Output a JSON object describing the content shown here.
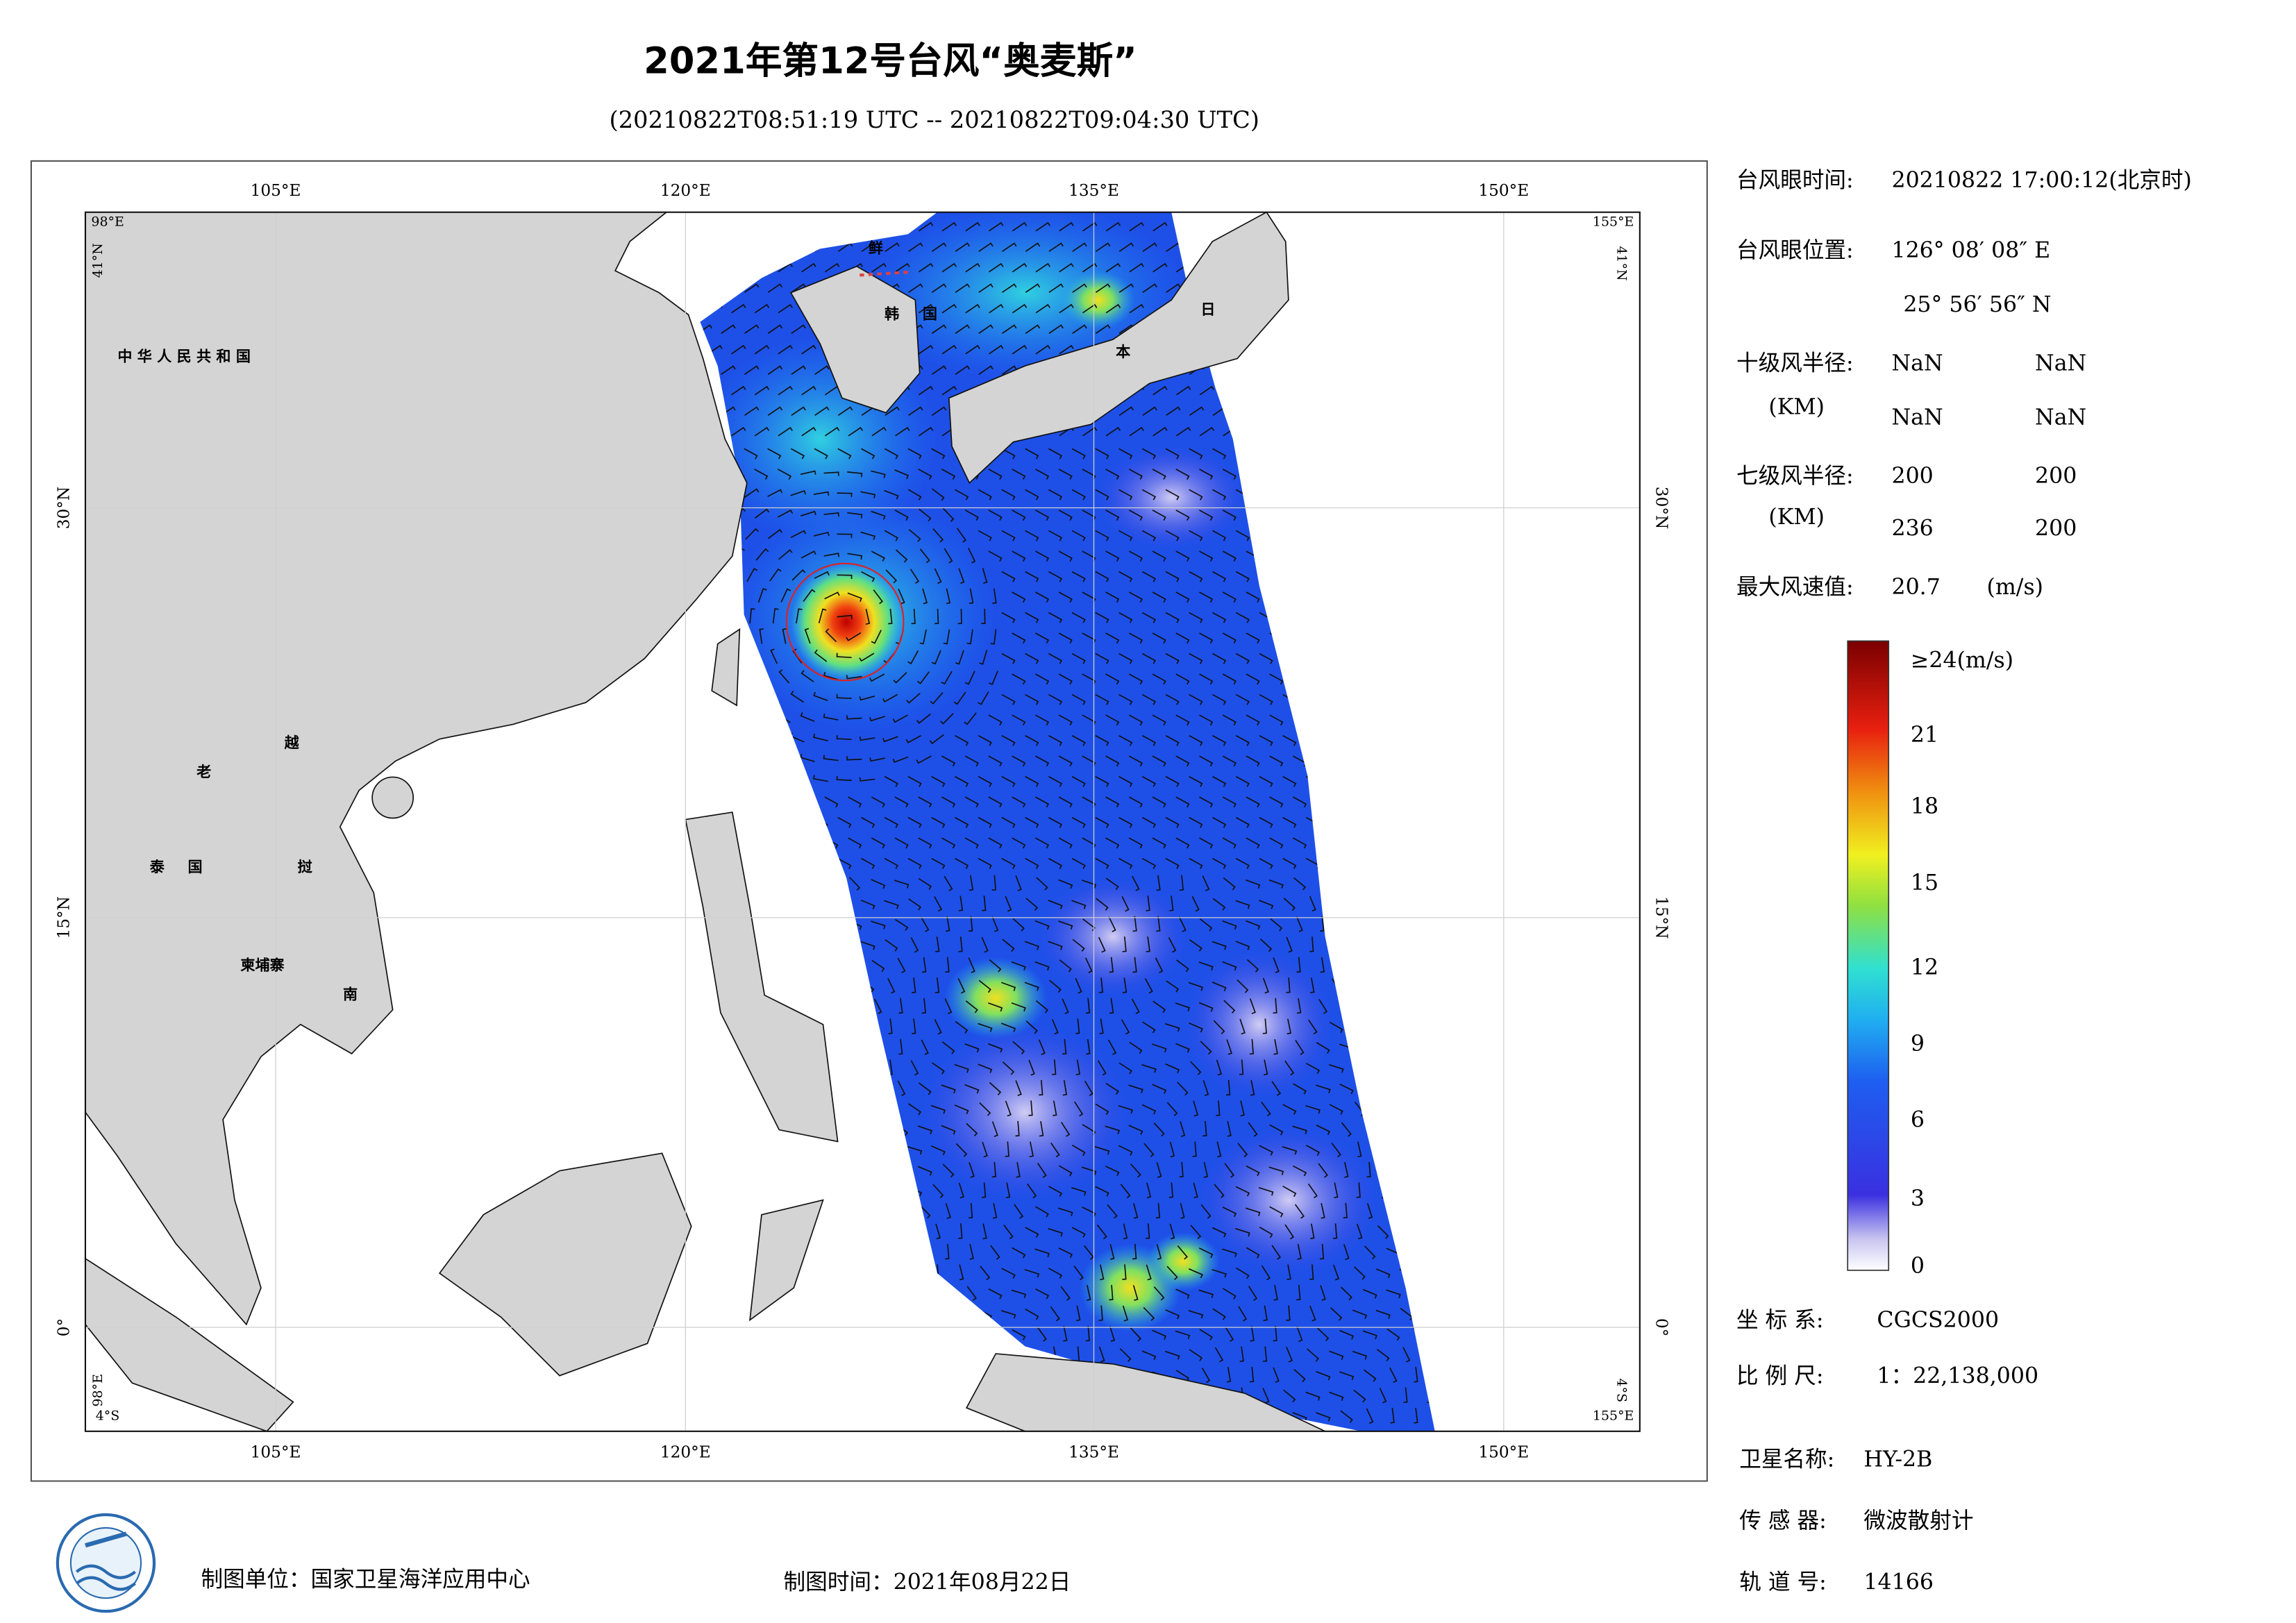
{
  "header": {
    "title": "2021年第12号台风“奥麦斯”",
    "subtitle": "(20210822T08:51:19 UTC -- 20210822T09:04:30 UTC)"
  },
  "map": {
    "lon_labels": [
      "105°E",
      "120°E",
      "135°E",
      "150°E"
    ],
    "lat_labels": [
      "30°N",
      "15°N",
      "0°"
    ],
    "corner_labels": {
      "top_left_lon": "98°E",
      "top_left_lat": "41°N",
      "top_right_lon": "155°E",
      "top_right_lat": "41°N",
      "bottom_left_lat": "98°E",
      "bottom_left_lon": "4°S",
      "bottom_right_lat": "4°S",
      "bottom_right_lon": "155°E"
    },
    "place_labels": [
      "中 华 人 民 共 和 国",
      "鲜",
      "韩",
      "国",
      "日",
      "本",
      "老",
      "越",
      "泰",
      "国",
      "挝",
      "柬埔寨",
      "南"
    ]
  },
  "info": {
    "eye_time": {
      "label": "台风眼时间:",
      "value": "20210822 17:00:12(北京时)"
    },
    "eye_position": {
      "label": "台风眼位置:",
      "lon": "126° 08′ 08″ E",
      "lat": "25° 56′ 56″ N"
    },
    "r10": {
      "label": "十级风半径:",
      "unit": "(KM)",
      "values": [
        "NaN",
        "NaN",
        "NaN",
        "NaN"
      ]
    },
    "r7": {
      "label": "七级风半径:",
      "unit": "(KM)",
      "values": [
        200,
        200,
        236,
        200
      ]
    },
    "max_wind": {
      "label": "最大风速值:",
      "value": 20.7,
      "unit": "(m/s)"
    },
    "crs": {
      "label": "坐 标 系:",
      "value": "CGCS2000"
    },
    "scale": {
      "label": "比 例 尺:",
      "value": "1：22,138,000"
    },
    "satellite": {
      "label": "卫星名称:",
      "value": "HY-2B"
    },
    "sensor": {
      "label": "传 感 器:",
      "value": "微波散射计"
    },
    "orbit": {
      "label": "轨 道 号:",
      "value": 14166
    }
  },
  "colorbar": {
    "ticks": [
      {
        "value": 24,
        "label": "≥24(m/s)"
      },
      21,
      18,
      15,
      12,
      9,
      6,
      3,
      0
    ]
  },
  "footer": {
    "unit": "制图单位：国家卫星海洋应用中心",
    "date": "制图时间：2021年08月22日"
  }
}
